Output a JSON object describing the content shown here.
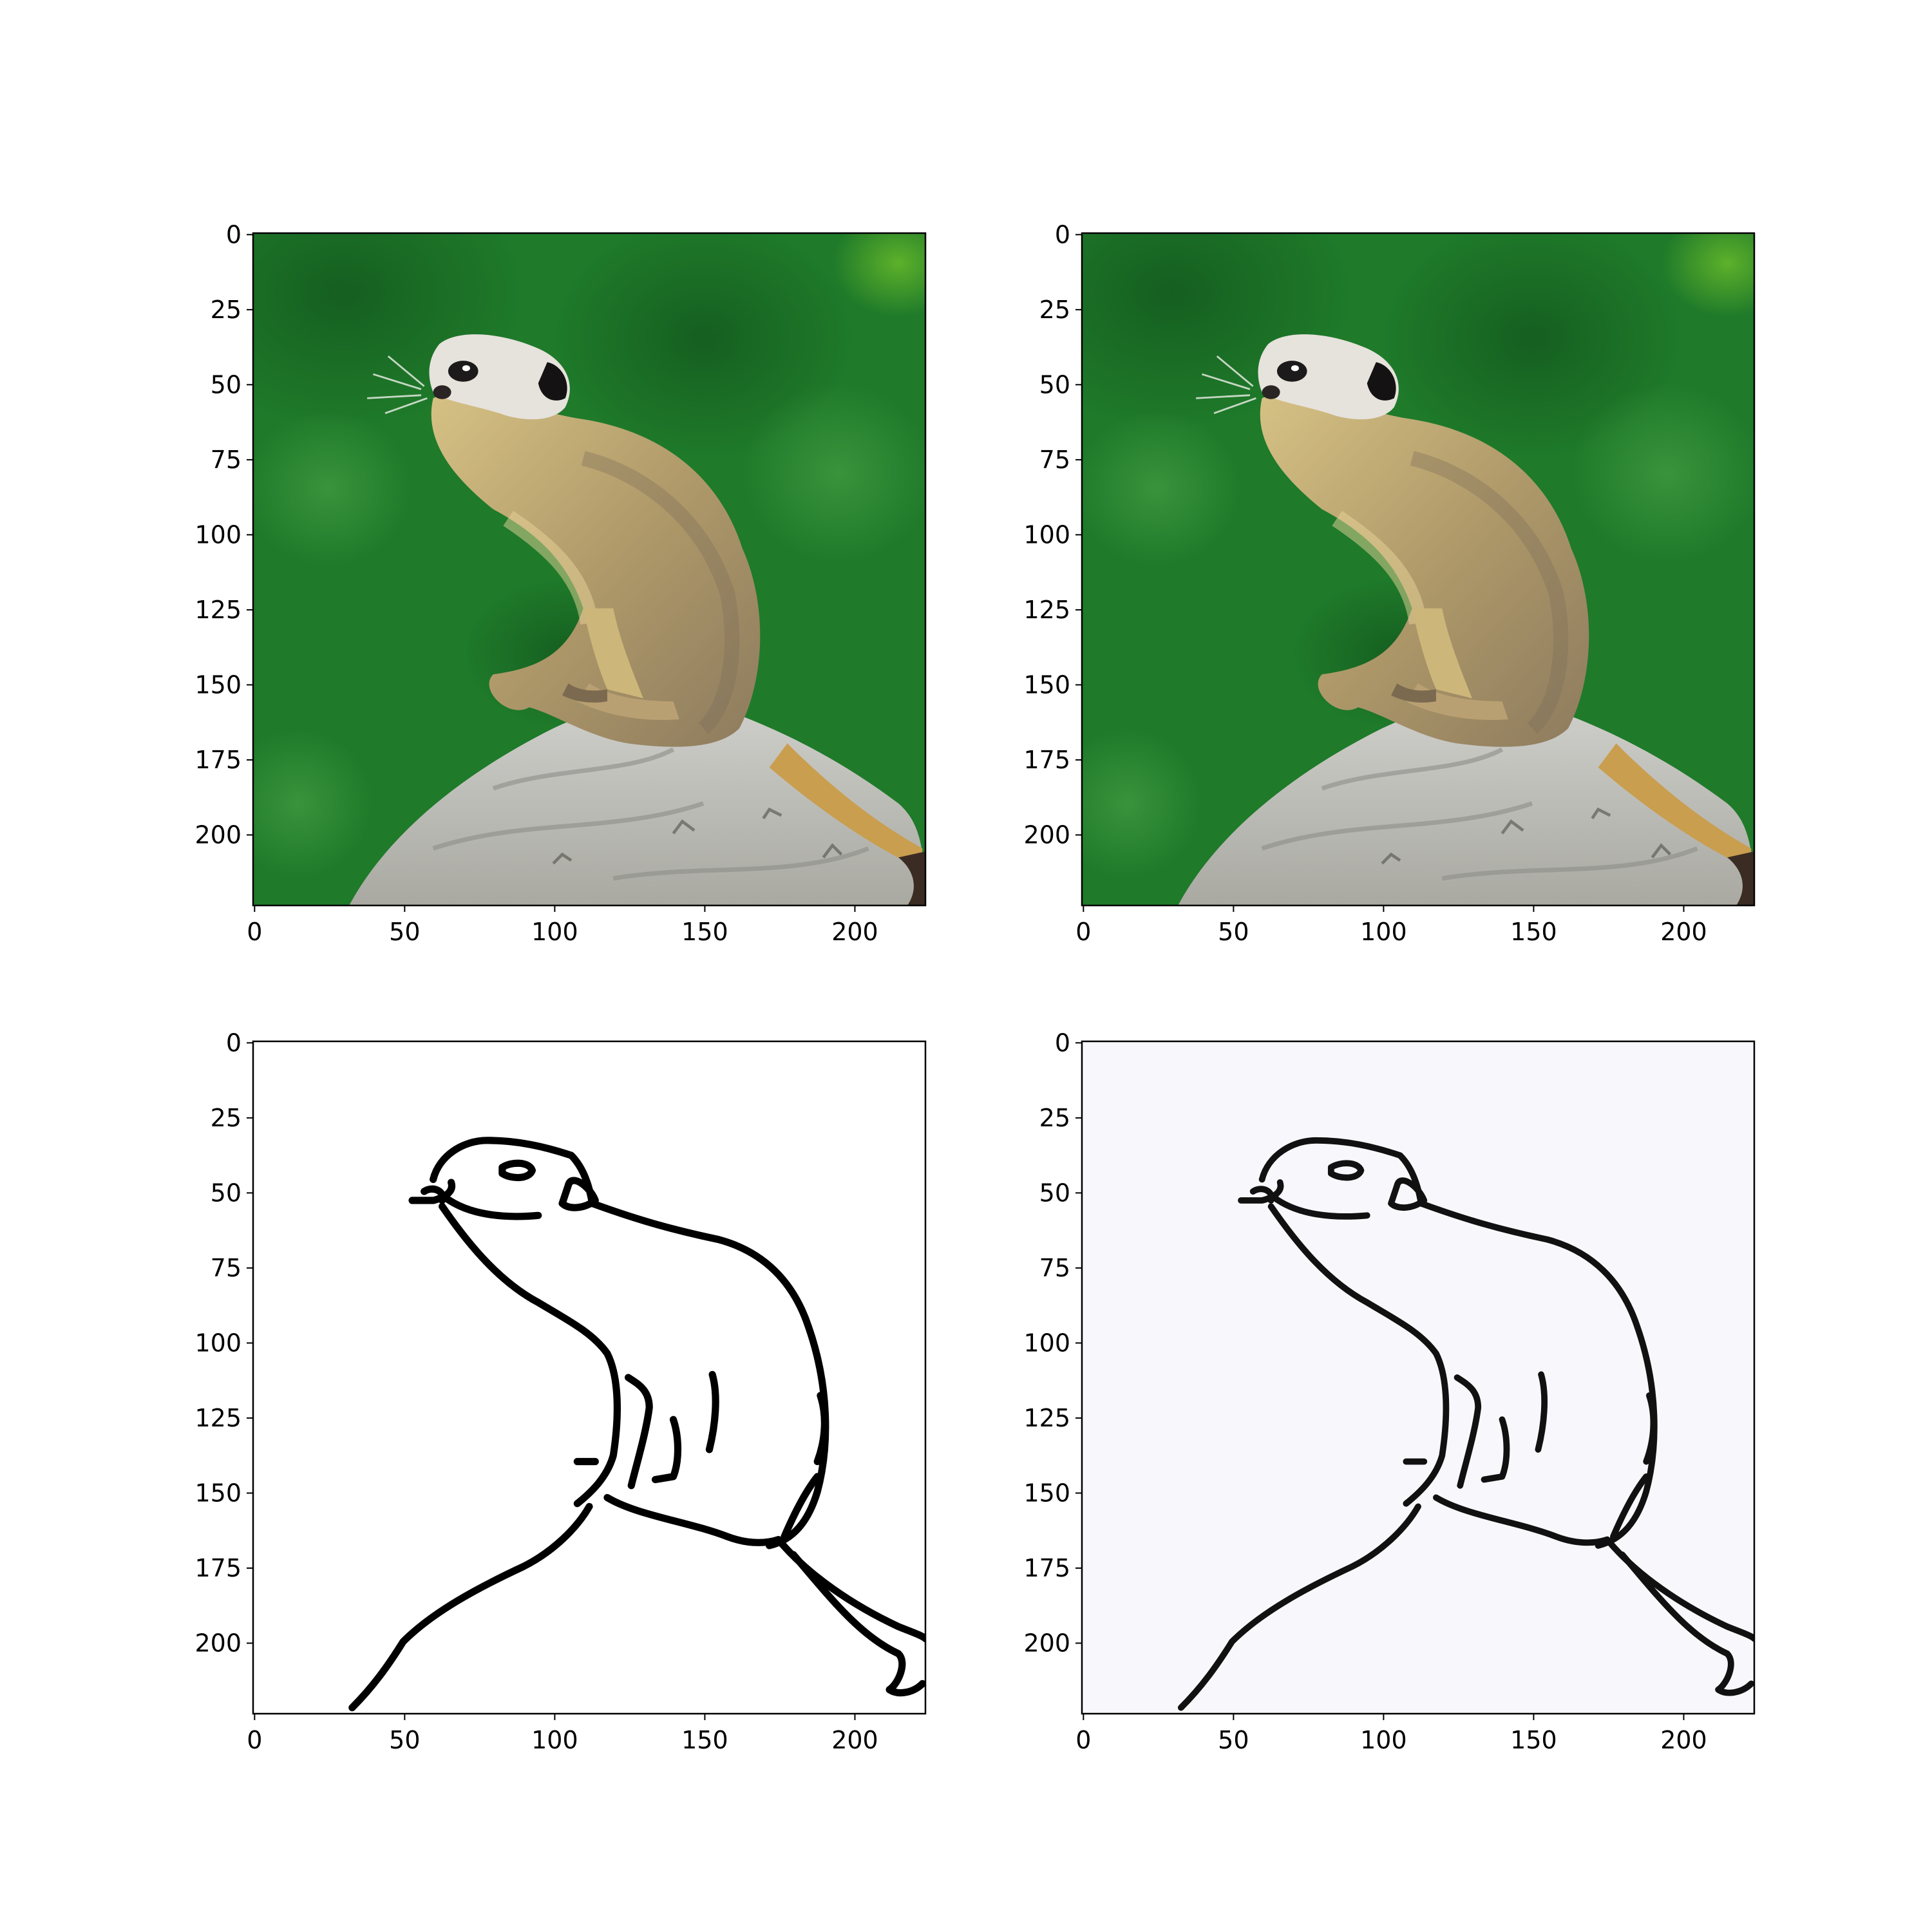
{
  "panels": [
    {
      "id": "photo-original",
      "kind": "photo",
      "colors": {
        "background": "#1f7a2a",
        "rock": "#b8b8b2",
        "fur": "#b89a60"
      }
    },
    {
      "id": "photo-reconstructed",
      "kind": "photo",
      "colors": {
        "background": "#20762c",
        "rock": "#c2c2bd",
        "fur": "#b59a65"
      }
    },
    {
      "id": "sketch-original",
      "kind": "sketch",
      "colors": {
        "background": "#ffffff",
        "stroke": "#000000"
      }
    },
    {
      "id": "sketch-reconstructed",
      "kind": "sketch",
      "colors": {
        "background": "#f8f8fc",
        "stroke": "#111111"
      }
    }
  ],
  "axes": {
    "x_ticks": [
      "0",
      "50",
      "100",
      "150",
      "200"
    ],
    "y_ticks": [
      "0",
      "25",
      "50",
      "75",
      "100",
      "125",
      "150",
      "175",
      "200"
    ],
    "x_range": [
      0,
      223
    ],
    "y_range": [
      0,
      223
    ]
  }
}
